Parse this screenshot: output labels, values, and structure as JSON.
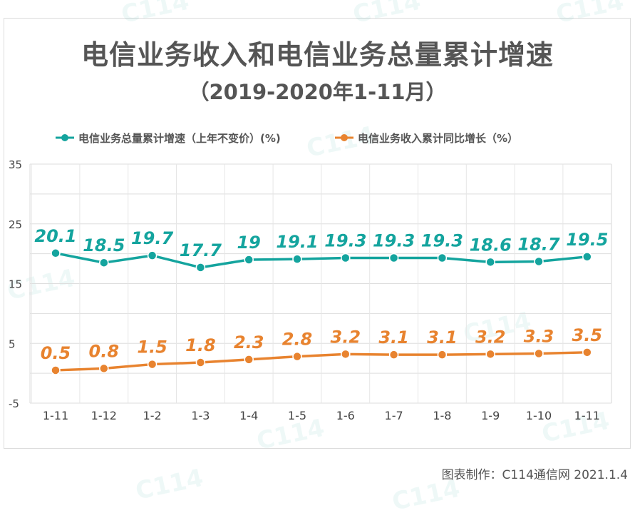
{
  "chart_data": {
    "type": "line",
    "title": "电信业务收入和电信业务总量累计增速",
    "subtitle": "（2019-2020年1-11月）",
    "categories": [
      "1-11",
      "1-12",
      "1-2",
      "1-3",
      "1-4",
      "1-5",
      "1-6",
      "1-7",
      "1-8",
      "1-9",
      "1-10",
      "1-11"
    ],
    "series": [
      {
        "name": "电信业务总量累计增速（上年不变价）(%)",
        "color": "#14a49e",
        "values": [
          20.1,
          18.5,
          19.7,
          17.7,
          19,
          19.1,
          19.3,
          19.3,
          19.3,
          18.6,
          18.7,
          19.5
        ],
        "labels": [
          "20.1",
          "18.5",
          "19.7",
          "17.7",
          "19",
          "19.1",
          "19.3",
          "19.3",
          "19.3",
          "18.6",
          "18.7",
          "19.5"
        ]
      },
      {
        "name": "电信业务收入累计同比增长（%）",
        "color": "#e8832f",
        "values": [
          0.5,
          0.8,
          1.5,
          1.8,
          2.3,
          2.8,
          3.2,
          3.1,
          3.1,
          3.2,
          3.3,
          3.5
        ],
        "labels": [
          "0.5",
          "0.8",
          "1.5",
          "1.8",
          "2.3",
          "2.8",
          "3.2",
          "3.1",
          "3.1",
          "3.2",
          "3.3",
          "3.5"
        ]
      }
    ],
    "yticks": [
      "35",
      "25",
      "15",
      "5",
      "-5"
    ],
    "ylim": [
      -5,
      35
    ],
    "grid": true,
    "legend": "top"
  },
  "credit": "图表制作：C114通信网  2021.1.4"
}
